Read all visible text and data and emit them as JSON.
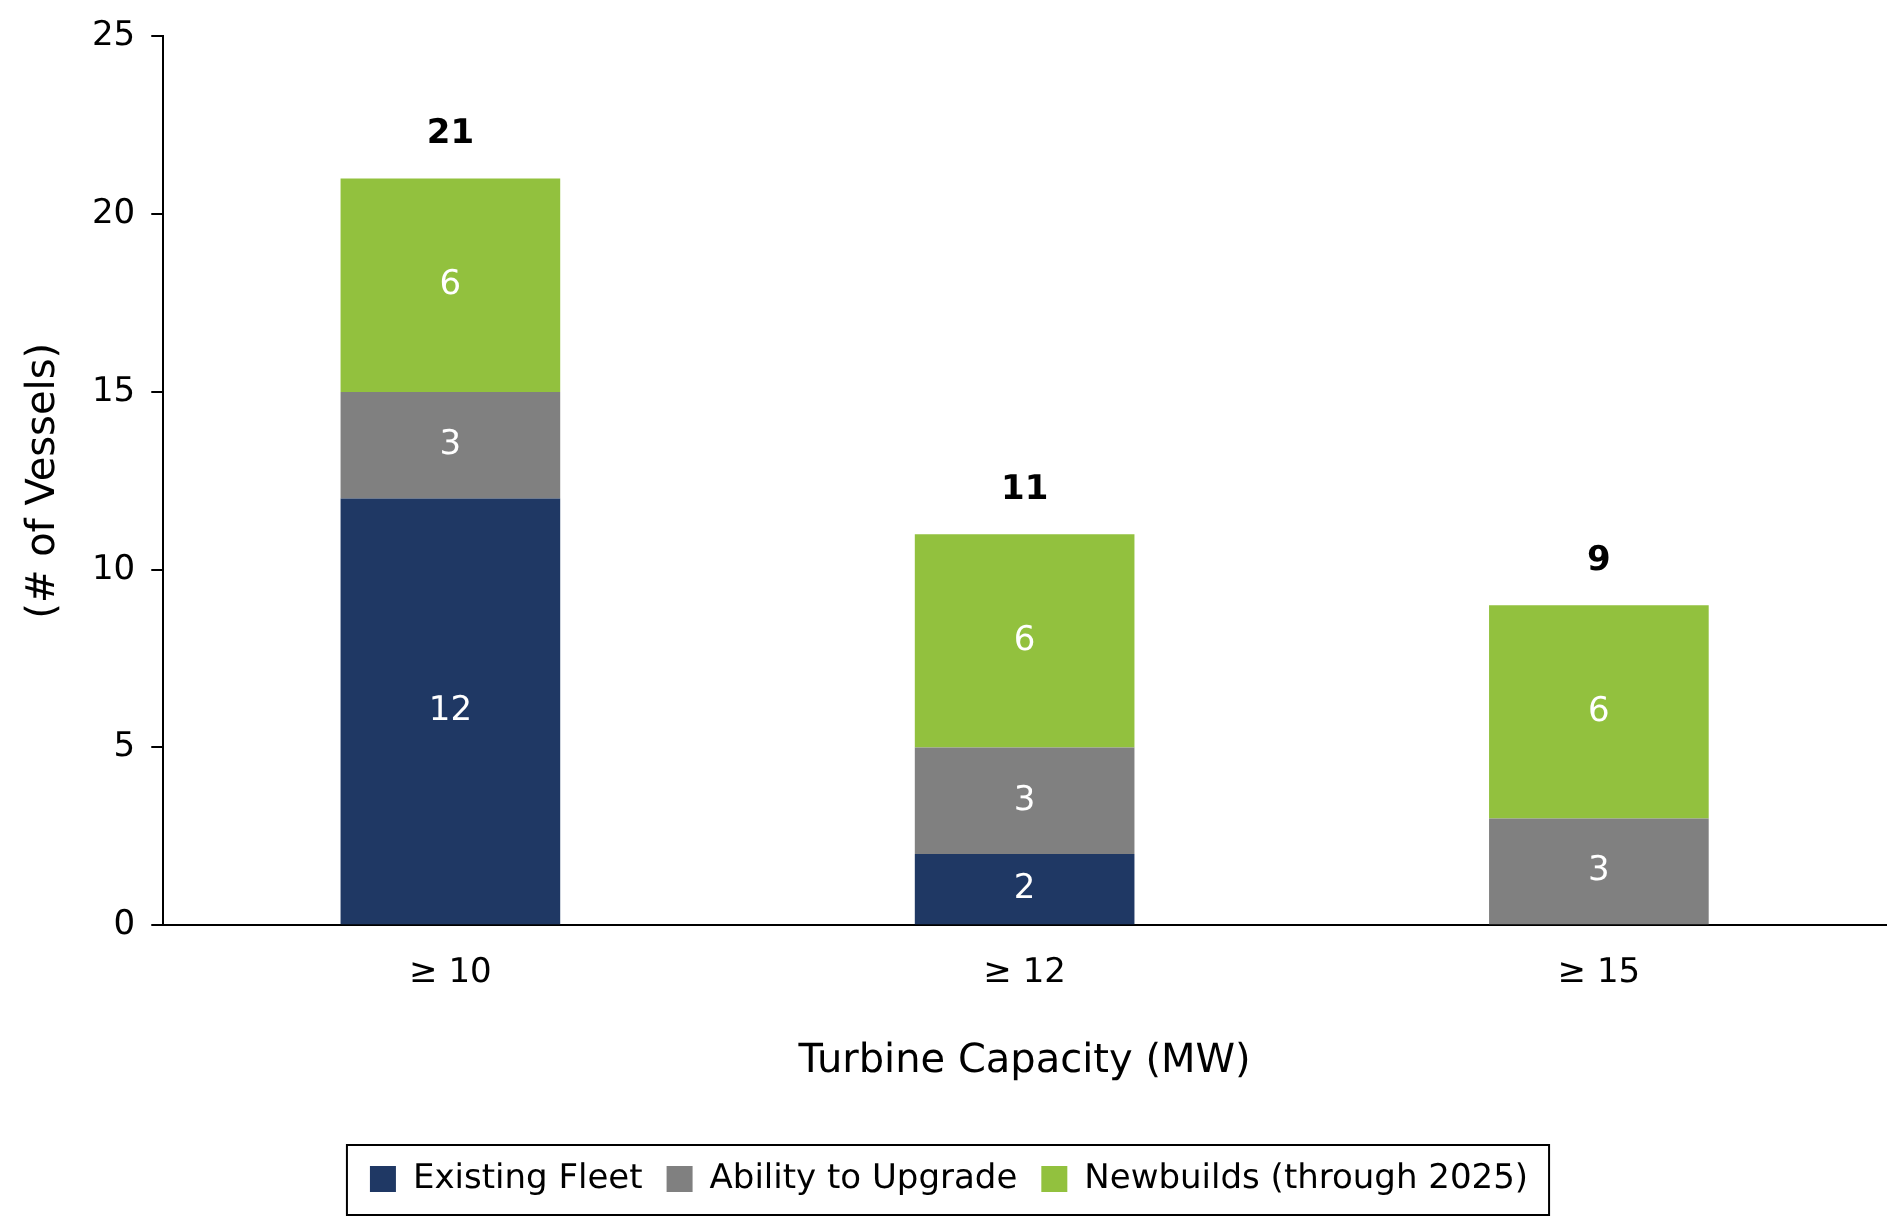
{
  "chart_data": {
    "type": "bar",
    "stacked": true,
    "xlabel": "Turbine Capacity (MW)",
    "ylabel": "(# of Vessels)",
    "categories": [
      "≥ 10",
      "≥ 12",
      "≥ 15"
    ],
    "series": [
      {
        "name": "Existing Fleet",
        "color": "#1f3864",
        "values": [
          12,
          2,
          0
        ],
        "value_labels": [
          "12",
          "2",
          null
        ]
      },
      {
        "name": "Ability to Upgrade",
        "color": "#808080",
        "values": [
          3,
          3,
          3
        ],
        "value_labels": [
          "3",
          "3",
          "3"
        ]
      },
      {
        "name": "Newbuilds (through 2025)",
        "color": "#92c13e",
        "values": [
          6,
          6,
          6
        ],
        "value_labels": [
          "6",
          "6",
          "6"
        ]
      }
    ],
    "totals": [
      "21",
      "11",
      "9"
    ],
    "ylim": [
      0,
      25
    ],
    "yticks": [
      0,
      5,
      10,
      15,
      20,
      25
    ],
    "grid": false,
    "legend": "bottom"
  }
}
